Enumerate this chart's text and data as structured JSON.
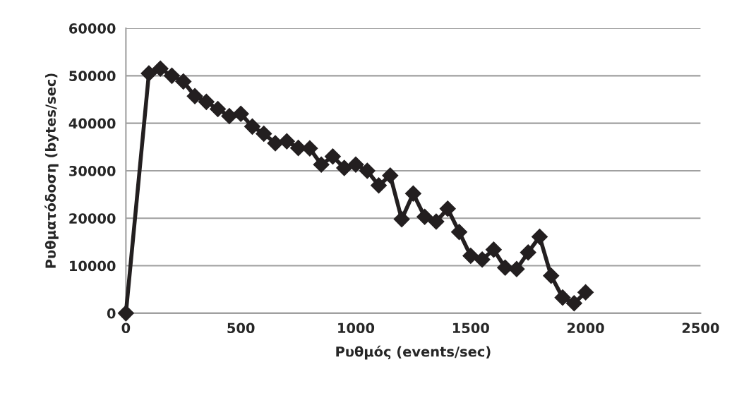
{
  "chart_data": {
    "type": "line",
    "xlabel": "Ρυθμός (events/sec)",
    "ylabel": "Ρυθματόδοση (bytes/sec)",
    "x": [
      0,
      100,
      150,
      200,
      250,
      300,
      350,
      400,
      450,
      500,
      550,
      600,
      650,
      700,
      750,
      800,
      850,
      900,
      950,
      1000,
      1050,
      1100,
      1150,
      1200,
      1250,
      1300,
      1350,
      1400,
      1450,
      1500,
      1550,
      1600,
      1650,
      1700,
      1750,
      1800,
      1850,
      1900,
      1950,
      2000
    ],
    "series": [
      {
        "color": "#231f20",
        "values": [
          0,
          50500,
          51500,
          50000,
          48800,
          45700,
          44500,
          43000,
          41500,
          42000,
          39300,
          37800,
          35800,
          36200,
          34800,
          34700,
          31300,
          33000,
          30600,
          31300,
          30000,
          26900,
          29000,
          19800,
          25200,
          20300,
          19300,
          22000,
          17100,
          12100,
          11300,
          13400,
          9600,
          9300,
          12800,
          16100,
          7900,
          3300,
          2100,
          4400
        ]
      }
    ],
    "xlim": [
      0,
      2500
    ],
    "xticks": [
      0,
      500,
      1000,
      1500,
      2000,
      2500
    ],
    "ylim": [
      0,
      60000
    ],
    "yticks": [
      0,
      10000,
      20000,
      30000,
      40000,
      50000,
      60000
    ],
    "grid": "y",
    "marker": "diamond",
    "line_style": "solid"
  }
}
